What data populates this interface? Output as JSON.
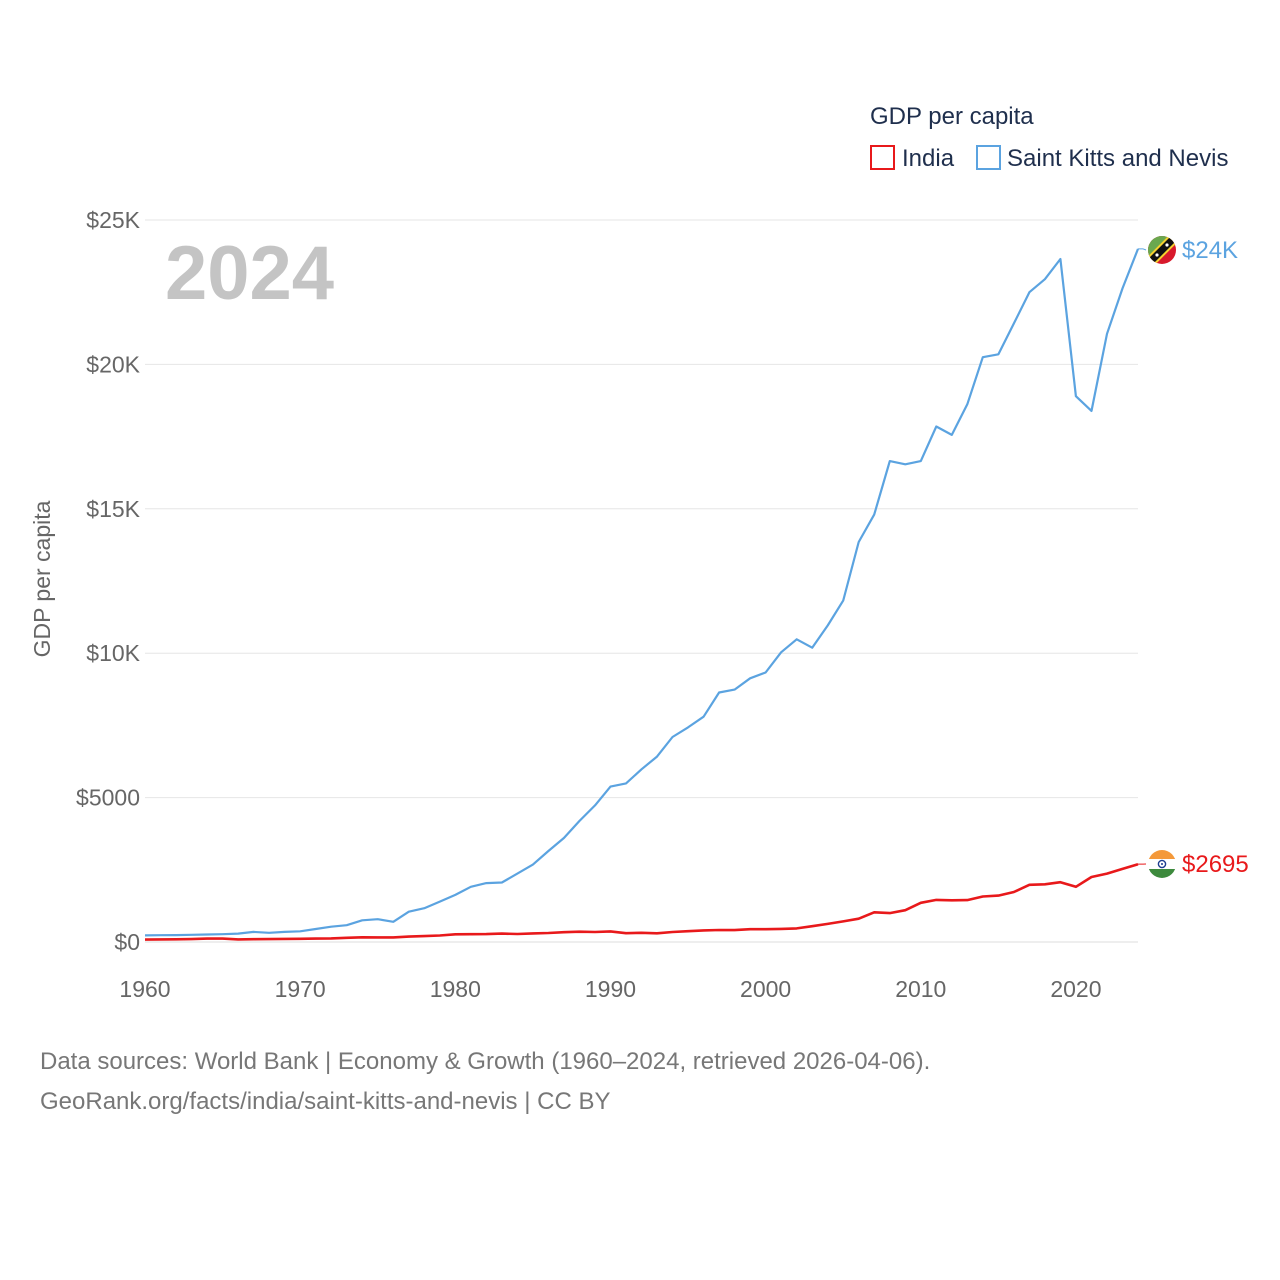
{
  "chart_data": {
    "type": "line",
    "legend_title": "GDP per capita",
    "ylabel": "GDP per capita",
    "xlabel": "",
    "year_label": "2024",
    "ylim": [
      0,
      25000
    ],
    "xlim": [
      1960,
      2024
    ],
    "y_ticks": [
      {
        "value": 0,
        "label": "$0"
      },
      {
        "value": 5000,
        "label": "$5000"
      },
      {
        "value": 10000,
        "label": "$10K"
      },
      {
        "value": 15000,
        "label": "$15K"
      },
      {
        "value": 20000,
        "label": "$20K"
      },
      {
        "value": 25000,
        "label": "$25K"
      }
    ],
    "x_ticks": [
      {
        "value": 1960,
        "label": "1960"
      },
      {
        "value": 1970,
        "label": "1970"
      },
      {
        "value": 1980,
        "label": "1980"
      },
      {
        "value": 1990,
        "label": "1990"
      },
      {
        "value": 2000,
        "label": "2000"
      },
      {
        "value": 2010,
        "label": "2010"
      },
      {
        "value": 2020,
        "label": "2020"
      }
    ],
    "x": [
      1960,
      1961,
      1962,
      1963,
      1964,
      1965,
      1966,
      1967,
      1968,
      1969,
      1970,
      1971,
      1972,
      1973,
      1974,
      1975,
      1976,
      1977,
      1978,
      1979,
      1980,
      1981,
      1982,
      1983,
      1984,
      1985,
      1986,
      1987,
      1988,
      1989,
      1990,
      1991,
      1992,
      1993,
      1994,
      1995,
      1996,
      1997,
      1998,
      1999,
      2000,
      2001,
      2002,
      2003,
      2004,
      2005,
      2006,
      2007,
      2008,
      2009,
      2010,
      2011,
      2012,
      2013,
      2014,
      2015,
      2016,
      2017,
      2018,
      2019,
      2020,
      2021,
      2022,
      2023,
      2024
    ],
    "series": [
      {
        "name": "India",
        "color": "#e8191b",
        "end_label": "$2695",
        "flag": "india-flag",
        "values": [
          83,
          89,
          93,
          101,
          116,
          119,
          90,
          97,
          100,
          108,
          112,
          118,
          123,
          144,
          163,
          158,
          161,
          186,
          206,
          224,
          267,
          271,
          275,
          292,
          277,
          297,
          311,
          341,
          355,
          346,
          368,
          303,
          317,
          302,
          346,
          373,
          400,
          415,
          413,
          442,
          443,
          452,
          471,
          546,
          627,
          714,
          806,
          1028,
          999,
          1102,
          1358,
          1458,
          1444,
          1450,
          1574,
          1606,
          1733,
          1981,
          1997,
          2072,
          1913,
          2250,
          2367,
          2530,
          2695
        ]
      },
      {
        "name": "Saint Kitts and Nevis",
        "color": "#5ba3e0",
        "end_label": "$24K",
        "flag": "saint-kitts-and-nevis-flag",
        "values": [
          230,
          235,
          240,
          250,
          260,
          270,
          290,
          350,
          320,
          350,
          370,
          450,
          530,
          580,
          750,
          790,
          700,
          1050,
          1170,
          1400,
          1630,
          1910,
          2040,
          2060,
          2370,
          2680,
          3150,
          3600,
          4190,
          4730,
          5380,
          5490,
          5980,
          6420,
          7100,
          7430,
          7800,
          8640,
          8740,
          9130,
          9330,
          10030,
          10480,
          10190,
          10960,
          11820,
          13850,
          14800,
          16650,
          16540,
          16650,
          17850,
          17560,
          18620,
          20250,
          20350,
          21420,
          22500,
          22950,
          23650,
          18900,
          18390,
          21060,
          22630,
          24000
        ]
      }
    ]
  },
  "footer": {
    "source_line1": "Data sources: World Bank | Economy & Growth (1960–2024, retrieved 2026-04-06).",
    "source_line2": "GeoRank.org/facts/india/saint-kitts-and-nevis | CC BY"
  }
}
